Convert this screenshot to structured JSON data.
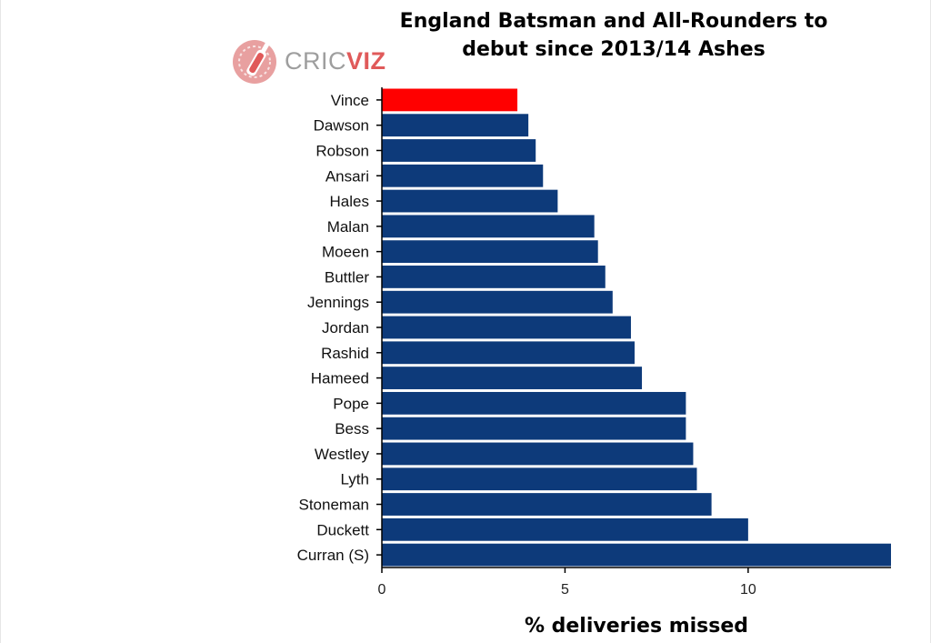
{
  "brand": {
    "logo_part1": "CRIC",
    "logo_part2": "VIZ"
  },
  "colors": {
    "bar": "#0d3a7a",
    "highlight": "#ff0000",
    "axis": "#000000",
    "logo_red": "#e05a5a"
  },
  "icons": [
    "cricket-bat-ball-logo-icon"
  ],
  "chart_data": {
    "type": "bar",
    "orientation": "horizontal",
    "title": "England Batsman and All-Rounders to debut since 2013/14 Ashes",
    "title_lines": [
      "England Batsman and All-Rounders to",
      "debut since 2013/14 Ashes"
    ],
    "xlabel": "% deliveries missed",
    "ylabel": "",
    "xlim": [
      0,
      13.9
    ],
    "xticks": [
      0,
      5,
      10
    ],
    "grid": false,
    "legend": "none",
    "categories": [
      "Vince",
      "Dawson",
      "Robson",
      "Ansari",
      "Hales",
      "Malan",
      "Moeen",
      "Buttler",
      "Jennings",
      "Jordan",
      "Rashid",
      "Hameed",
      "Pope",
      "Bess",
      "Westley",
      "Lyth",
      "Stoneman",
      "Duckett",
      "Curran (S)"
    ],
    "values": [
      3.7,
      4.0,
      4.2,
      4.4,
      4.8,
      5.8,
      5.9,
      6.1,
      6.3,
      6.8,
      6.9,
      7.1,
      8.3,
      8.3,
      8.5,
      8.6,
      9.0,
      10.0,
      13.9
    ],
    "highlight": "Vince"
  }
}
